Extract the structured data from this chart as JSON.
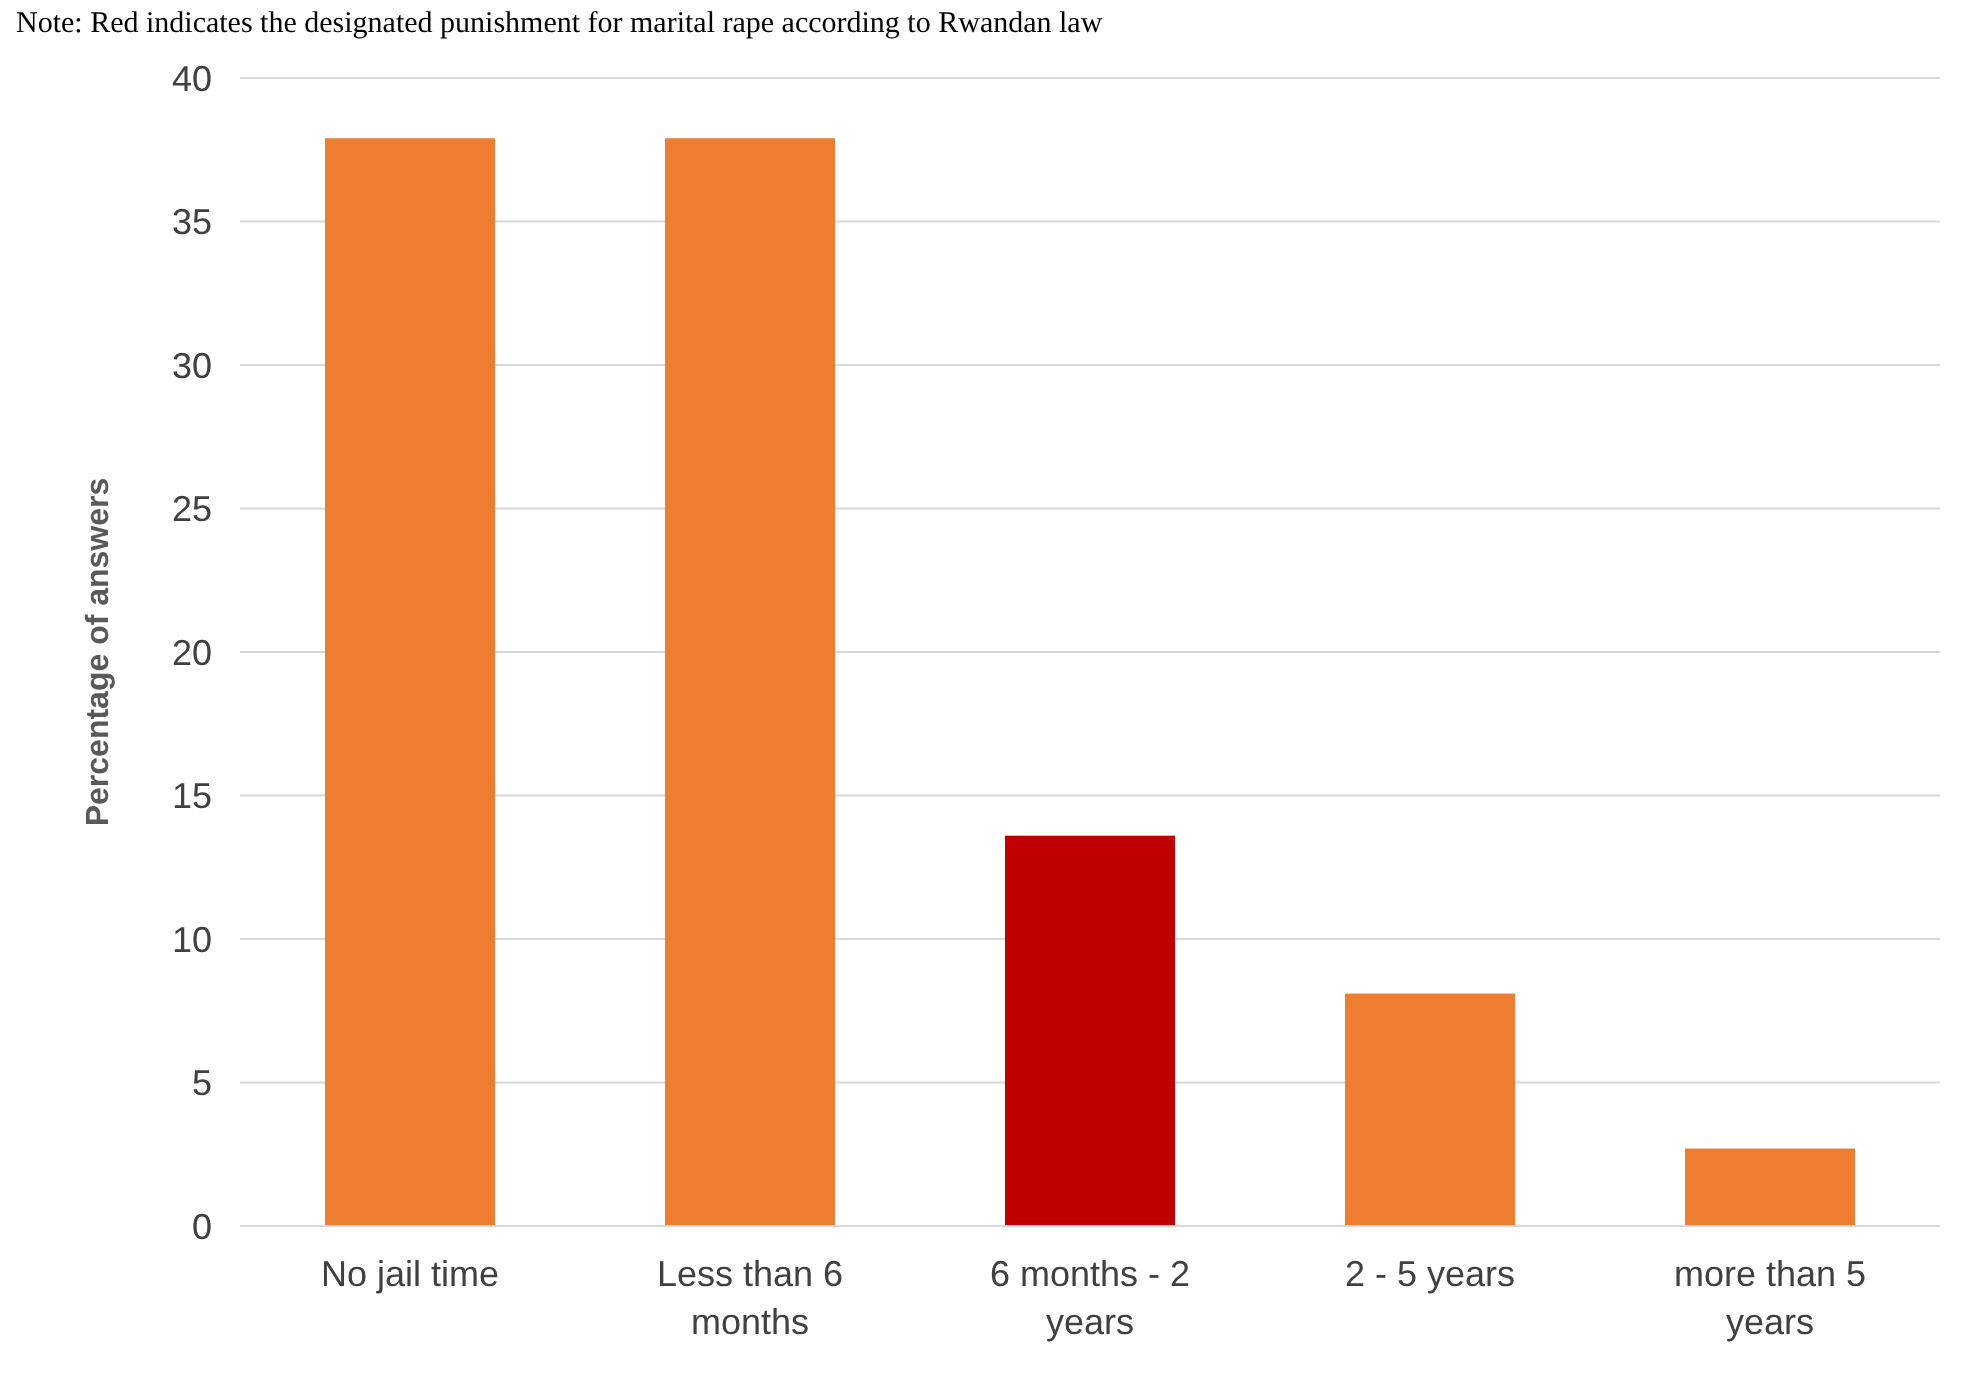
{
  "chart_data": {
    "type": "bar",
    "ylabel": "Percentage of answers",
    "annotations": [
      "Note: Red indicates the designated punishment for marital rape according to Rwandan law"
    ],
    "categories": [
      "No jail time",
      "Less than 6 months",
      "6 months - 2 years",
      "2 - 5 years",
      "more than 5 years"
    ],
    "values": [
      37.9,
      37.9,
      13.6,
      8.1,
      2.7
    ],
    "colors": [
      "#ed7d31",
      "#ed7d31",
      "#c00000",
      "#ed7d31",
      "#ed7d31"
    ],
    "ylim": [
      0,
      40
    ],
    "yticks": [
      0,
      5,
      10,
      15,
      20,
      25,
      30,
      35,
      40
    ],
    "grid": "y"
  }
}
